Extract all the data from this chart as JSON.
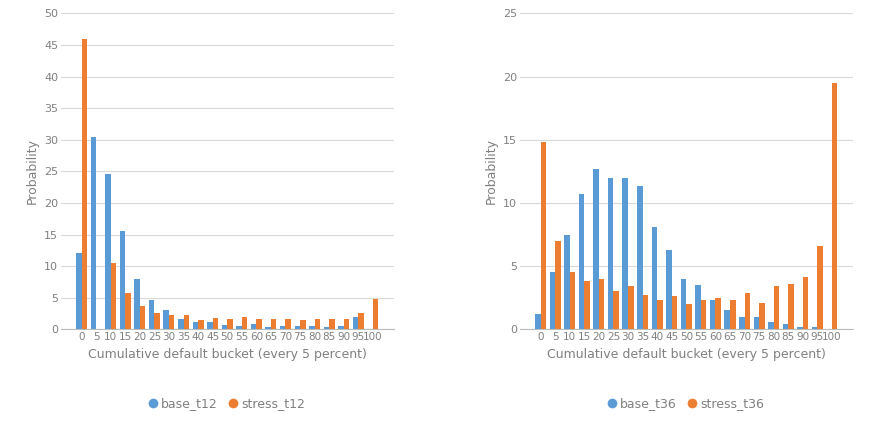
{
  "categories": [
    0,
    5,
    10,
    15,
    20,
    25,
    30,
    35,
    40,
    45,
    50,
    55,
    60,
    65,
    70,
    75,
    80,
    85,
    90,
    95,
    100
  ],
  "base_t12": [
    12,
    30.5,
    24.5,
    15.5,
    8,
    4.7,
    3,
    1.7,
    1.1,
    1.1,
    0.7,
    0.5,
    0.9,
    0.3,
    0.5,
    0.5,
    0.5,
    0.4,
    0.5,
    2,
    0
  ],
  "stress_t12": [
    46,
    0,
    10.5,
    5.8,
    3.7,
    2.6,
    2.3,
    2.2,
    1.5,
    1.8,
    1.7,
    2.0,
    1.6,
    1.7,
    1.7,
    1.5,
    1.7,
    1.7,
    1.7,
    2.6,
    4.8
  ],
  "base_t36": [
    1.2,
    4.5,
    7.5,
    10.7,
    12.7,
    12.0,
    12.0,
    11.3,
    8.1,
    6.3,
    4.0,
    3.5,
    2.3,
    1.5,
    1.0,
    1.0,
    0.6,
    0.4,
    0.2,
    0.2,
    0
  ],
  "stress_t36": [
    14.8,
    7.0,
    4.5,
    3.8,
    4.0,
    3.0,
    3.4,
    2.7,
    2.3,
    2.6,
    2.0,
    2.3,
    2.5,
    2.3,
    2.9,
    2.1,
    3.4,
    3.6,
    4.1,
    6.6,
    19.5
  ],
  "blue_color": "#5B9BD5",
  "orange_color": "#ED7D31",
  "ylabel": "Probability",
  "xlabel": "Cumulative default bucket (every 5 percent)",
  "legend1": [
    "base_t12",
    "stress_t12"
  ],
  "legend2": [
    "base_t36",
    "stress_t36"
  ],
  "ylim1": [
    0,
    50
  ],
  "ylim2": [
    0,
    25
  ],
  "yticks1": [
    0,
    5,
    10,
    15,
    20,
    25,
    30,
    35,
    40,
    45,
    50
  ],
  "yticks2": [
    0,
    5,
    10,
    15,
    20,
    25
  ],
  "bg_color": "#FFFFFF",
  "grid_color": "#D9D9D9",
  "label_color": "#808080"
}
